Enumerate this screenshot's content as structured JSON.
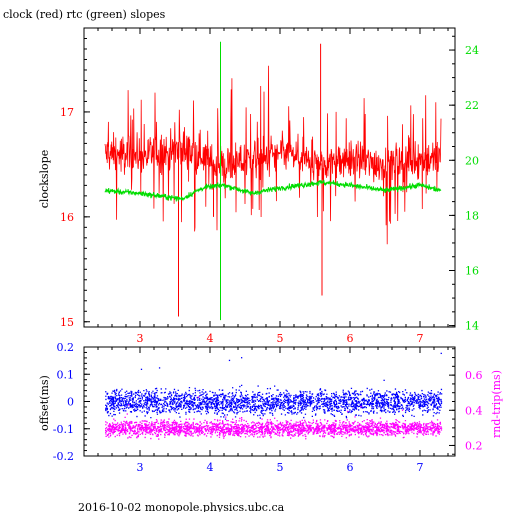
{
  "title": "clock (red) rtc (green) slopes",
  "footer": "2016-10-02  monopole.physics.ubc.ca",
  "colors": {
    "clock": "#ff0000",
    "rtc": "#00dd00",
    "offset": "#0000ff",
    "roundtrip": "#ff00ff",
    "axes": "#000000"
  },
  "chart_data": [
    {
      "type": "line",
      "name": "slopes",
      "title": "clock (red) rtc (green) slopes",
      "xlabel": "",
      "ylabel": "clockslope",
      "y2label": "",
      "xlim": [
        2.2,
        7.5
      ],
      "ylim": [
        14.95,
        17.8
      ],
      "y2lim": [
        13.95,
        24.8
      ],
      "xticks": [
        "3",
        "4",
        "5",
        "6",
        "7"
      ],
      "yticks": [
        "15",
        "16",
        "17"
      ],
      "y2ticks": [
        "14",
        "16",
        "18",
        "20",
        "22",
        "24"
      ],
      "series": [
        {
          "name": "clock",
          "axis": "left",
          "color": "#ff0000",
          "baseline": [
            [
              2.5,
              16.6
            ],
            [
              3.0,
              16.58
            ],
            [
              3.5,
              16.62
            ],
            [
              3.9,
              16.6
            ],
            [
              4.0,
              16.5
            ],
            [
              4.3,
              16.5
            ],
            [
              4.6,
              16.55
            ],
            [
              5.0,
              16.6
            ],
            [
              5.5,
              16.5
            ],
            [
              6.0,
              16.55
            ],
            [
              6.5,
              16.5
            ],
            [
              7.0,
              16.55
            ],
            [
              7.3,
              16.55
            ]
          ],
          "noise_amplitude": 0.35,
          "spikes": [
            [
              3.55,
              15.05
            ],
            [
              4.15,
              16.0
            ],
            [
              5.58,
              17.65
            ],
            [
              5.6,
              15.25
            ],
            [
              4.05,
              16.0
            ]
          ]
        },
        {
          "name": "rtc",
          "axis": "right",
          "color": "#00dd00",
          "baseline": [
            [
              2.5,
              18.9
            ],
            [
              3.0,
              18.8
            ],
            [
              3.6,
              18.6
            ],
            [
              3.9,
              19.0
            ],
            [
              4.2,
              19.1
            ],
            [
              4.6,
              18.8
            ],
            [
              5.0,
              19.0
            ],
            [
              5.6,
              19.2
            ],
            [
              6.0,
              19.1
            ],
            [
              6.5,
              18.9
            ],
            [
              7.0,
              19.1
            ],
            [
              7.3,
              18.9
            ]
          ],
          "noise_amplitude": 0.1,
          "spikes": [
            [
              4.15,
              24.3
            ],
            [
              4.15,
              14.2
            ]
          ]
        }
      ]
    },
    {
      "type": "scatter",
      "name": "offset-roundtrip",
      "xlabel": "",
      "ylabel": "offset(ms)",
      "y2label": "rnd-trip(ms)",
      "xlim": [
        2.2,
        7.5
      ],
      "ylim": [
        -0.2,
        0.2
      ],
      "y2lim": [
        0.14,
        0.76
      ],
      "xticks": [
        "3",
        "4",
        "5",
        "6",
        "7"
      ],
      "yticks": [
        "-0.2",
        "-0.1",
        "0",
        "0.1",
        "0.2"
      ],
      "y2ticks": [
        "0.2",
        "0.4",
        "0.6"
      ],
      "series": [
        {
          "name": "offset",
          "axis": "left",
          "color": "#0000ff",
          "center": 0.0,
          "spread": 0.045,
          "range": [
            2.5,
            7.3
          ]
        },
        {
          "name": "rnd-trip",
          "axis": "right",
          "color": "#ff00ff",
          "center": 0.3,
          "spread": 0.045,
          "range": [
            2.5,
            7.3
          ]
        }
      ]
    }
  ]
}
